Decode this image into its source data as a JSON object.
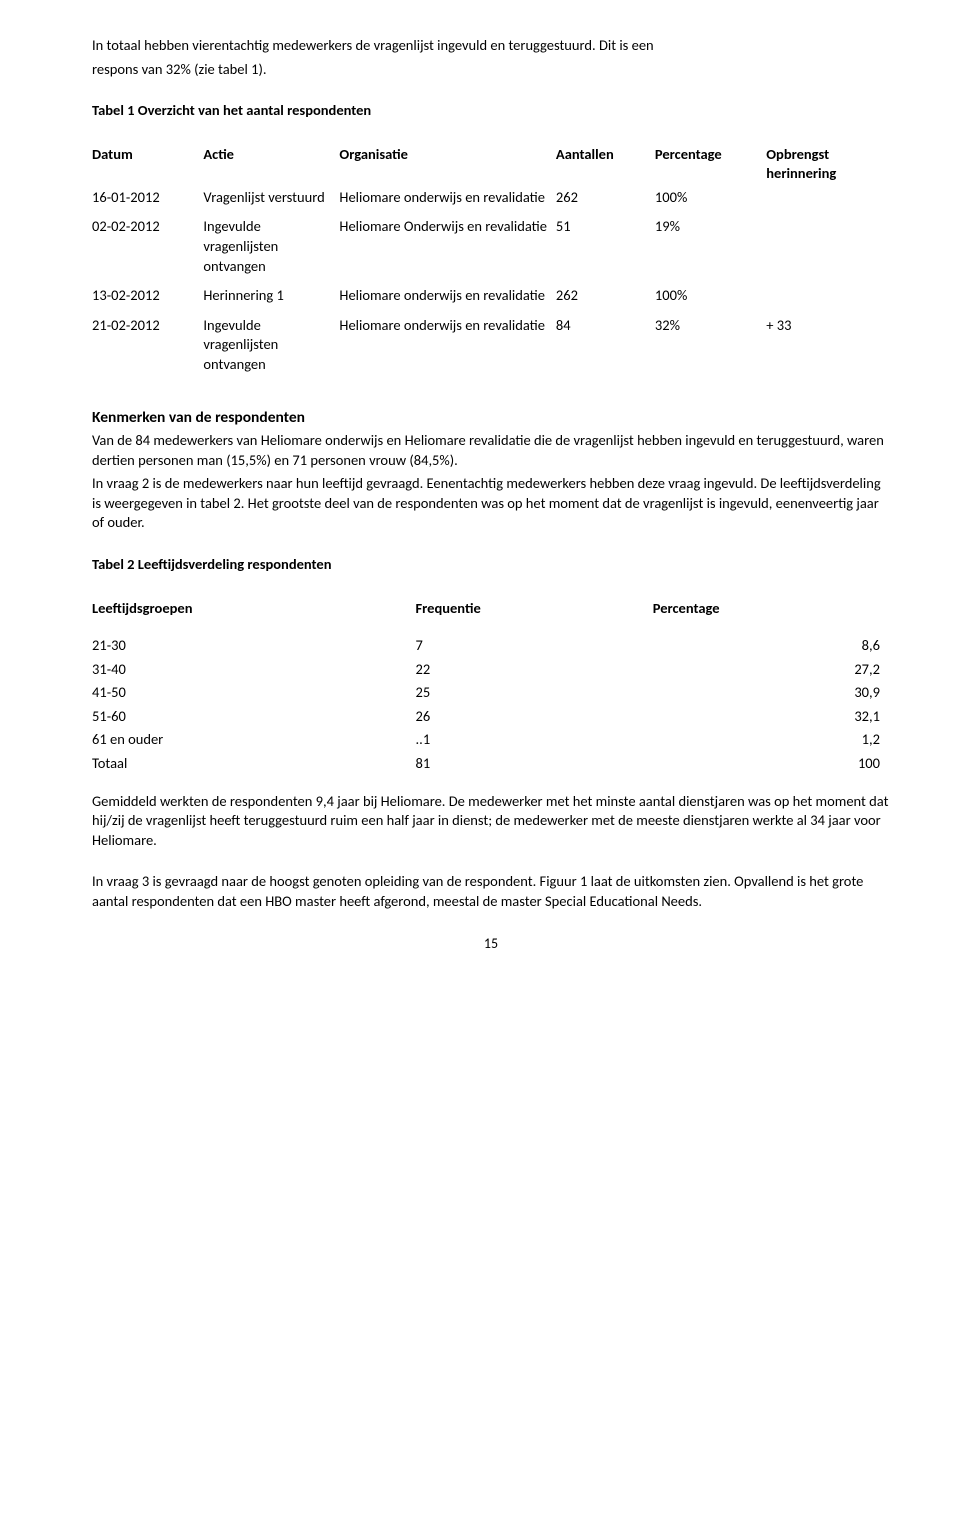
{
  "intro": {
    "line1": "In totaal hebben vierentachtig medewerkers de vragenlijst ingevuld en teruggestuurd. Dit is een",
    "line2": "respons van 32% (zie tabel 1)."
  },
  "table1": {
    "caption": "Tabel 1 Overzicht van het aantal respondenten",
    "headers": {
      "datum": "Datum",
      "actie": "Actie",
      "organisatie": "Organisatie",
      "aantallen": "Aantallen",
      "percentage": "Percentage",
      "opbrengst": "Opbrengst herinnering"
    },
    "rows": [
      {
        "datum": "16-01-2012",
        "actie": "Vragenlijst verstuurd",
        "organisatie": "Heliomare onderwijs en revalidatie",
        "aantallen": "262",
        "percentage": "100%",
        "opbrengst": ""
      },
      {
        "datum": "02-02-2012",
        "actie": "Ingevulde vragenlijsten ontvangen",
        "organisatie": "Heliomare Onderwijs en revalidatie",
        "aantallen": "51",
        "percentage": "19%",
        "opbrengst": ""
      },
      {
        "datum": "13-02-2012",
        "actie": "Herinnering 1",
        "organisatie": "Heliomare onderwijs en revalidatie",
        "aantallen": "262",
        "percentage": "100%",
        "opbrengst": ""
      },
      {
        "datum": "21-02-2012",
        "actie": "Ingevulde vragenlijsten ontvangen",
        "organisatie": "Heliomare onderwijs en revalidatie",
        "aantallen": "84",
        "percentage": "32%",
        "opbrengst": "+ 33"
      }
    ],
    "col_widths": [
      "90px",
      "110px",
      "175px",
      "80px",
      "90px",
      "100px"
    ]
  },
  "kenmerken": {
    "heading": "Kenmerken van de respondenten",
    "p1": "Van de 84 medewerkers van Heliomare onderwijs en Heliomare revalidatie die de vragenlijst hebben ingevuld en teruggestuurd, waren dertien personen man (15,5%) en 71 personen vrouw (84,5%).",
    "p2": "In vraag 2 is de medewerkers naar hun leeftijd gevraagd. Eenentachtig medewerkers hebben deze vraag ingevuld. De leeftijdsverdeling is weergegeven in tabel 2. Het grootste deel van de respondenten was op het moment dat de vragenlijst is ingevuld, eenenveertig jaar of ouder."
  },
  "table2": {
    "caption": "Tabel 2 Leeftijdsverdeling respondenten",
    "headers": {
      "groep": "Leeftijdsgroepen",
      "freq": "Frequentie",
      "pct": "Percentage"
    },
    "rows": [
      {
        "groep": "21-30",
        "freq": "7",
        "pct": "8,6"
      },
      {
        "groep": "31-40",
        "freq": "22",
        "pct": "27,2"
      },
      {
        "groep": "41-50",
        "freq": "25",
        "pct": "30,9"
      },
      {
        "groep": "51-60",
        "freq": "26",
        "pct": "32,1"
      },
      {
        "groep": "61 en ouder",
        "freq": "..1",
        "pct": "1,2"
      },
      {
        "groep": "Totaal",
        "freq": "81",
        "pct": "100"
      }
    ],
    "col_widths": [
      "150px",
      "110px",
      "110px"
    ]
  },
  "after_t2": {
    "p1": "Gemiddeld werkten de respondenten 9,4 jaar bij Heliomare. De medewerker met het minste aantal dienstjaren was op het moment dat hij/zij de vragenlijst heeft teruggestuurd ruim een half jaar in dienst; de medewerker met de meeste dienstjaren werkte al 34 jaar voor Heliomare.",
    "p2": "In vraag 3 is gevraagd naar de hoogst genoten opleiding van de respondent. Figuur 1 laat de uitkomsten zien. Opvallend is het grote aantal respondenten dat een HBO master heeft afgerond, meestal de master Special Educational Needs."
  },
  "pagenum": "15"
}
